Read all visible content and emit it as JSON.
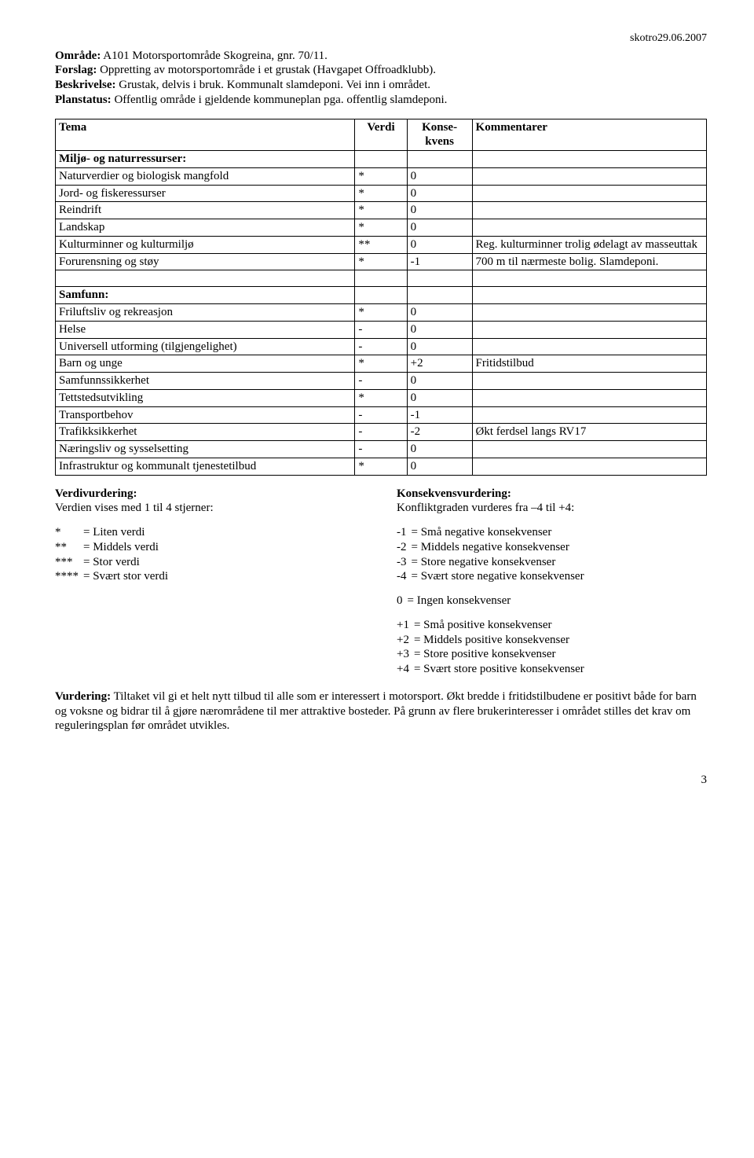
{
  "header_right": "skotro29.06.2007",
  "intro": {
    "omrade_label": "Område:",
    "omrade_value": " A101 Motorsportområde Skogreina, gnr. 70/11.",
    "forslag_label": "Forslag:",
    "forslag_value": " Oppretting av motorsportområde i et grustak (Havgapet Offroadklubb).",
    "beskrivelse_label": "Beskrivelse:",
    "beskrivelse_value": " Grustak, delvis i bruk. Kommunalt slamdeponi. Vei inn i området.",
    "planstatus_label": "Planstatus:",
    "planstatus_value": " Offentlig område i gjeldende kommuneplan pga. offentlig slamdeponi."
  },
  "table": {
    "headers": {
      "tema": "Tema",
      "verdi": "Verdi",
      "konsekvens": "Konse-kvens",
      "kommentarer": "Kommentarer"
    },
    "section1": "Miljø- og naturressurser:",
    "rows1": [
      {
        "t": "Naturverdier og biologisk mangfold",
        "v": "*",
        "k": "0",
        "c": ""
      },
      {
        "t": "Jord- og fiskeressurser",
        "v": "*",
        "k": "0",
        "c": ""
      },
      {
        "t": "Reindrift",
        "v": "*",
        "k": "0",
        "c": ""
      },
      {
        "t": "Landskap",
        "v": "*",
        "k": "0",
        "c": ""
      },
      {
        "t": "Kulturminner og kulturmiljø",
        "v": "**",
        "k": "0",
        "c": "Reg. kulturminner trolig ødelagt av masseuttak"
      },
      {
        "t": "Forurensning og støy",
        "v": "*",
        "k": "-1",
        "c": "700 m til nærmeste bolig. Slamdeponi."
      }
    ],
    "section2": "Samfunn:",
    "rows2": [
      {
        "t": "Friluftsliv og rekreasjon",
        "v": "*",
        "k": "0",
        "c": ""
      },
      {
        "t": "Helse",
        "v": "-",
        "k": "0",
        "c": ""
      },
      {
        "t": "Universell utforming (tilgjengelighet)",
        "v": "-",
        "k": "0",
        "c": ""
      },
      {
        "t": "Barn og unge",
        "v": "*",
        "k": "+2",
        "c": "Fritidstilbud"
      },
      {
        "t": "Samfunnssikkerhet",
        "v": "-",
        "k": "0",
        "c": ""
      },
      {
        "t": "Tettstedsutvikling",
        "v": "*",
        "k": "0",
        "c": ""
      },
      {
        "t": "Transportbehov",
        "v": "-",
        "k": "-1",
        "c": ""
      },
      {
        "t": "Trafikksikkerhet",
        "v": "-",
        "k": "-2",
        "c": "Økt ferdsel langs RV17"
      },
      {
        "t": "Næringsliv og sysselsetting",
        "v": "-",
        "k": "0",
        "c": ""
      },
      {
        "t": "Infrastruktur og kommunalt tjenestetilbud",
        "v": "*",
        "k": "0",
        "c": ""
      }
    ]
  },
  "left": {
    "heading": "Verdivurdering:",
    "sub": "Verdien vises med 1 til 4 stjerner:",
    "items": [
      {
        "s": "*",
        "eq": "= Liten verdi"
      },
      {
        "s": "**",
        "eq": "= Middels verdi"
      },
      {
        "s": "***",
        "eq": "= Stor verdi"
      },
      {
        "s": "****",
        "eq": "= Svært stor verdi"
      }
    ]
  },
  "right": {
    "heading": "Konsekvensvurdering:",
    "sub": "Konfliktgraden vurderes fra –4 til +4:",
    "neg": [
      {
        "s": "-1",
        "eq": "= Små negative konsekvenser"
      },
      {
        "s": "-2",
        "eq": "= Middels negative konsekvenser"
      },
      {
        "s": "-3",
        "eq": "= Store negative konsekvenser"
      },
      {
        "s": "-4",
        "eq": "= Svært store negative konsekvenser"
      }
    ],
    "zero": {
      "s": "0",
      "eq": "= Ingen konsekvenser"
    },
    "pos": [
      {
        "s": "+1",
        "eq": "= Små positive konsekvenser"
      },
      {
        "s": "+2",
        "eq": "= Middels positive konsekvenser"
      },
      {
        "s": "+3",
        "eq": "= Store positive konsekvenser"
      },
      {
        "s": "+4",
        "eq": "= Svært store positive konsekvenser"
      }
    ]
  },
  "vurdering": {
    "label": "Vurdering:",
    "text": " Tiltaket vil gi et helt nytt tilbud til alle som er interessert i motorsport. Økt bredde i fritidstilbudene er positivt både for barn og voksne og bidrar til å gjøre nærområdene til mer attraktive bosteder. På grunn av flere brukerinteresser i området stilles det krav om reguleringsplan før området utvikles."
  },
  "pagenum": "3"
}
